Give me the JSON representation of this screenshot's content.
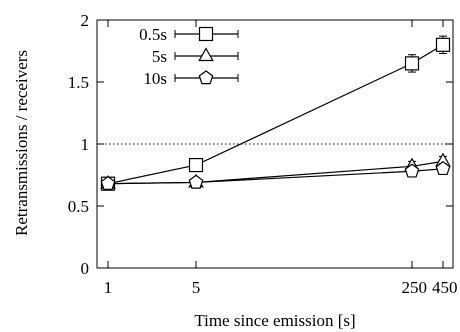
{
  "chart_data": {
    "type": "line",
    "xlabel": "Time since emission [s]",
    "ylabel": "Retransmissions / receivers",
    "categories": [
      "1",
      "5",
      "250",
      "450"
    ],
    "yticks": [
      "0",
      "0.5",
      "1",
      "1.5",
      "2"
    ],
    "ylim": [
      0,
      2
    ],
    "reference_line": 1,
    "grid": false,
    "legend_placement": "top-left",
    "series": [
      {
        "name": "0.5s",
        "marker": "square",
        "values": [
          0.68,
          0.83,
          1.65,
          1.8
        ],
        "errors": [
          0.03,
          0.05,
          0.07,
          0.07
        ]
      },
      {
        "name": "5s",
        "marker": "triangle",
        "values": [
          0.68,
          0.69,
          0.82,
          0.86
        ],
        "errors": [
          0.03,
          0.03,
          0.04,
          0.04
        ]
      },
      {
        "name": "10s",
        "marker": "pentagon",
        "values": [
          0.68,
          0.69,
          0.78,
          0.8
        ],
        "errors": [
          0.03,
          0.03,
          0.04,
          0.04
        ]
      }
    ]
  }
}
